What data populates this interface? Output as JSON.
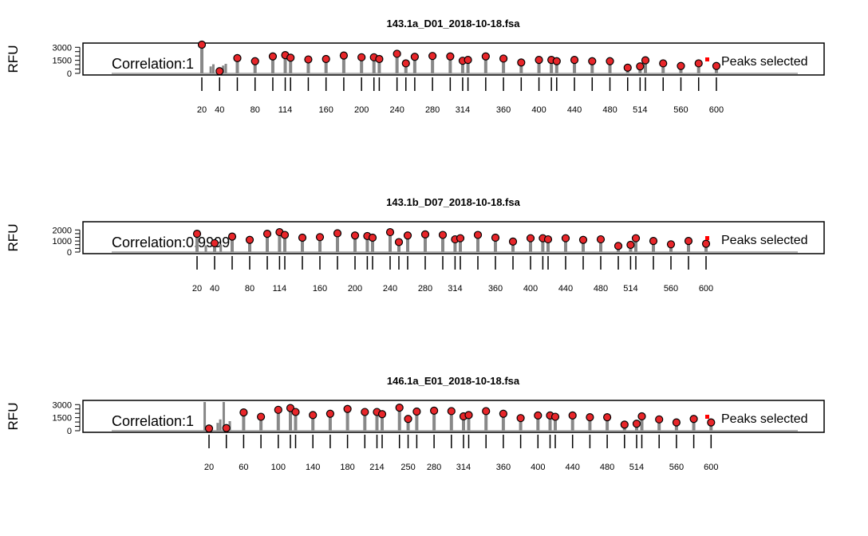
{
  "chart_data": [
    {
      "type": "line",
      "title": "143.1a_D01_2018-10-18.fsa",
      "ylabel": "RFU",
      "yticks": [
        0,
        1500,
        3000
      ],
      "ylim": [
        0,
        3300
      ],
      "xlim": [
        0,
        650
      ],
      "correlation_label": "Correlation:1",
      "legend": "Peaks selected",
      "legend_color": "#ff0000",
      "marker_color": "#e8262a",
      "trace_color": "#888888",
      "ladder_ticks": [
        20,
        40,
        60,
        80,
        100,
        114,
        120,
        140,
        160,
        180,
        200,
        214,
        220,
        240,
        250,
        260,
        280,
        300,
        314,
        320,
        340,
        360,
        380,
        400,
        414,
        420,
        440,
        460,
        480,
        500,
        514,
        520,
        540,
        560,
        580,
        600
      ],
      "ladder_labels": [
        20,
        40,
        80,
        114,
        160,
        200,
        240,
        280,
        314,
        360,
        400,
        440,
        480,
        514,
        560,
        600
      ],
      "peaks": [
        {
          "x": 20,
          "y": 3400
        },
        {
          "x": 40,
          "y": 250
        },
        {
          "x": 60,
          "y": 1750
        },
        {
          "x": 80,
          "y": 1400
        },
        {
          "x": 100,
          "y": 1950
        },
        {
          "x": 114,
          "y": 2100
        },
        {
          "x": 120,
          "y": 1800
        },
        {
          "x": 140,
          "y": 1600
        },
        {
          "x": 160,
          "y": 1650
        },
        {
          "x": 180,
          "y": 2050
        },
        {
          "x": 200,
          "y": 1850
        },
        {
          "x": 214,
          "y": 1850
        },
        {
          "x": 220,
          "y": 1650
        },
        {
          "x": 240,
          "y": 2250
        },
        {
          "x": 250,
          "y": 1150
        },
        {
          "x": 260,
          "y": 1900
        },
        {
          "x": 280,
          "y": 2000
        },
        {
          "x": 300,
          "y": 1950
        },
        {
          "x": 314,
          "y": 1450
        },
        {
          "x": 320,
          "y": 1550
        },
        {
          "x": 340,
          "y": 1950
        },
        {
          "x": 360,
          "y": 1700
        },
        {
          "x": 380,
          "y": 1250
        },
        {
          "x": 400,
          "y": 1550
        },
        {
          "x": 414,
          "y": 1550
        },
        {
          "x": 420,
          "y": 1400
        },
        {
          "x": 440,
          "y": 1550
        },
        {
          "x": 460,
          "y": 1400
        },
        {
          "x": 480,
          "y": 1400
        },
        {
          "x": 500,
          "y": 650
        },
        {
          "x": 514,
          "y": 800
        },
        {
          "x": 520,
          "y": 1500
        },
        {
          "x": 540,
          "y": 1150
        },
        {
          "x": 560,
          "y": 850
        },
        {
          "x": 580,
          "y": 1150
        },
        {
          "x": 600,
          "y": 850
        }
      ],
      "extra_peaks": [
        {
          "x": 30,
          "y": 800
        },
        {
          "x": 33,
          "y": 1050
        },
        {
          "x": 44,
          "y": 900
        },
        {
          "x": 47,
          "y": 1100
        }
      ],
      "series": [
        {
          "values": [
            3400,
            250,
            1750,
            1400,
            1950,
            2100,
            1800,
            1600,
            1650,
            2050,
            1850,
            1850,
            1650,
            2250,
            1150,
            1900,
            2000,
            1950,
            1450,
            1550,
            1950,
            1700,
            1250,
            1550,
            1550,
            1400,
            1550,
            1400,
            1400,
            650,
            800,
            1500,
            1150,
            850,
            1150,
            850
          ]
        }
      ]
    },
    {
      "type": "line",
      "title": "143.1b_D07_2018-10-18.fsa",
      "ylabel": "RFU",
      "yticks": [
        0,
        1000,
        2000
      ],
      "ylim": [
        0,
        2600
      ],
      "xlim": [
        0,
        650
      ],
      "correlation_label": "Correlation:0.9999",
      "legend": "Peaks selected",
      "legend_color": "#ff0000",
      "marker_color": "#e8262a",
      "trace_color": "#888888",
      "ladder_ticks": [
        20,
        40,
        60,
        80,
        100,
        114,
        120,
        140,
        160,
        180,
        200,
        214,
        220,
        240,
        250,
        260,
        280,
        300,
        314,
        320,
        340,
        360,
        380,
        400,
        414,
        420,
        440,
        460,
        480,
        500,
        514,
        520,
        540,
        560,
        580,
        600
      ],
      "ladder_labels": [
        20,
        40,
        80,
        114,
        160,
        200,
        240,
        280,
        314,
        360,
        400,
        440,
        480,
        514,
        560,
        600
      ],
      "peaks": [
        {
          "x": 20,
          "y": 1650
        },
        {
          "x": 40,
          "y": 800
        },
        {
          "x": 60,
          "y": 1400
        },
        {
          "x": 80,
          "y": 1100
        },
        {
          "x": 100,
          "y": 1650
        },
        {
          "x": 114,
          "y": 1800
        },
        {
          "x": 120,
          "y": 1550
        },
        {
          "x": 140,
          "y": 1300
        },
        {
          "x": 160,
          "y": 1350
        },
        {
          "x": 180,
          "y": 1700
        },
        {
          "x": 200,
          "y": 1500
        },
        {
          "x": 214,
          "y": 1450
        },
        {
          "x": 220,
          "y": 1300
        },
        {
          "x": 240,
          "y": 1800
        },
        {
          "x": 250,
          "y": 900
        },
        {
          "x": 260,
          "y": 1500
        },
        {
          "x": 280,
          "y": 1600
        },
        {
          "x": 300,
          "y": 1550
        },
        {
          "x": 314,
          "y": 1150
        },
        {
          "x": 320,
          "y": 1250
        },
        {
          "x": 340,
          "y": 1550
        },
        {
          "x": 360,
          "y": 1300
        },
        {
          "x": 380,
          "y": 950
        },
        {
          "x": 400,
          "y": 1250
        },
        {
          "x": 414,
          "y": 1250
        },
        {
          "x": 420,
          "y": 1150
        },
        {
          "x": 440,
          "y": 1250
        },
        {
          "x": 460,
          "y": 1100
        },
        {
          "x": 480,
          "y": 1150
        },
        {
          "x": 500,
          "y": 550
        },
        {
          "x": 514,
          "y": 650
        },
        {
          "x": 520,
          "y": 1250
        },
        {
          "x": 540,
          "y": 1000
        },
        {
          "x": 560,
          "y": 700
        },
        {
          "x": 580,
          "y": 1000
        },
        {
          "x": 600,
          "y": 750
        }
      ],
      "extra_peaks": [
        {
          "x": 30,
          "y": 600
        },
        {
          "x": 47,
          "y": 700
        }
      ],
      "series": [
        {
          "values": [
            1650,
            800,
            1400,
            1100,
            1650,
            1800,
            1550,
            1300,
            1350,
            1700,
            1500,
            1450,
            1300,
            1800,
            900,
            1500,
            1600,
            1550,
            1150,
            1250,
            1550,
            1300,
            950,
            1250,
            1250,
            1150,
            1250,
            1100,
            1150,
            550,
            650,
            1250,
            1000,
            700,
            1000,
            750
          ]
        }
      ]
    },
    {
      "type": "line",
      "title": "146.1a_E01_2018-10-18.fsa",
      "ylabel": "RFU",
      "yticks": [
        0,
        1500,
        3000
      ],
      "ylim": [
        0,
        3300
      ],
      "xlim": [
        0,
        650
      ],
      "correlation_label": "Correlation:1",
      "legend": "Peaks selected",
      "legend_color": "#ff0000",
      "marker_color": "#e8262a",
      "trace_color": "#888888",
      "ladder_ticks": [
        20,
        40,
        60,
        80,
        100,
        114,
        120,
        140,
        160,
        180,
        200,
        214,
        220,
        240,
        250,
        260,
        280,
        300,
        314,
        320,
        340,
        360,
        380,
        400,
        414,
        420,
        440,
        460,
        480,
        500,
        514,
        520,
        540,
        560,
        580,
        600
      ],
      "ladder_labels": [
        20,
        60,
        100,
        140,
        180,
        214,
        250,
        280,
        314,
        360,
        400,
        440,
        480,
        514,
        560,
        600
      ],
      "peaks": [
        {
          "x": 20,
          "y": 250
        },
        {
          "x": 40,
          "y": 300
        },
        {
          "x": 60,
          "y": 2100
        },
        {
          "x": 80,
          "y": 1600
        },
        {
          "x": 100,
          "y": 2400
        },
        {
          "x": 114,
          "y": 2600
        },
        {
          "x": 120,
          "y": 2150
        },
        {
          "x": 140,
          "y": 1800
        },
        {
          "x": 160,
          "y": 1950
        },
        {
          "x": 180,
          "y": 2500
        },
        {
          "x": 200,
          "y": 2150
        },
        {
          "x": 214,
          "y": 2150
        },
        {
          "x": 220,
          "y": 1900
        },
        {
          "x": 240,
          "y": 2650
        },
        {
          "x": 250,
          "y": 1350
        },
        {
          "x": 260,
          "y": 2200
        },
        {
          "x": 280,
          "y": 2300
        },
        {
          "x": 300,
          "y": 2250
        },
        {
          "x": 314,
          "y": 1650
        },
        {
          "x": 320,
          "y": 1800
        },
        {
          "x": 340,
          "y": 2250
        },
        {
          "x": 360,
          "y": 1950
        },
        {
          "x": 380,
          "y": 1450
        },
        {
          "x": 400,
          "y": 1750
        },
        {
          "x": 414,
          "y": 1750
        },
        {
          "x": 420,
          "y": 1600
        },
        {
          "x": 440,
          "y": 1750
        },
        {
          "x": 460,
          "y": 1550
        },
        {
          "x": 480,
          "y": 1550
        },
        {
          "x": 500,
          "y": 700
        },
        {
          "x": 514,
          "y": 800
        },
        {
          "x": 520,
          "y": 1650
        },
        {
          "x": 540,
          "y": 1300
        },
        {
          "x": 560,
          "y": 950
        },
        {
          "x": 580,
          "y": 1350
        },
        {
          "x": 600,
          "y": 950
        }
      ],
      "extra_peaks": [
        {
          "x": 15,
          "y": 3400
        },
        {
          "x": 30,
          "y": 900
        },
        {
          "x": 33,
          "y": 1300
        },
        {
          "x": 37,
          "y": 3400
        },
        {
          "x": 44,
          "y": 1100
        }
      ],
      "series": [
        {
          "values": [
            250,
            300,
            2100,
            1600,
            2400,
            2600,
            2150,
            1800,
            1950,
            2500,
            2150,
            2150,
            1900,
            2650,
            1350,
            2200,
            2300,
            2250,
            1650,
            1800,
            2250,
            1950,
            1450,
            1750,
            1750,
            1600,
            1750,
            1550,
            1550,
            700,
            800,
            1650,
            1300,
            950,
            1350,
            950
          ]
        }
      ]
    }
  ]
}
